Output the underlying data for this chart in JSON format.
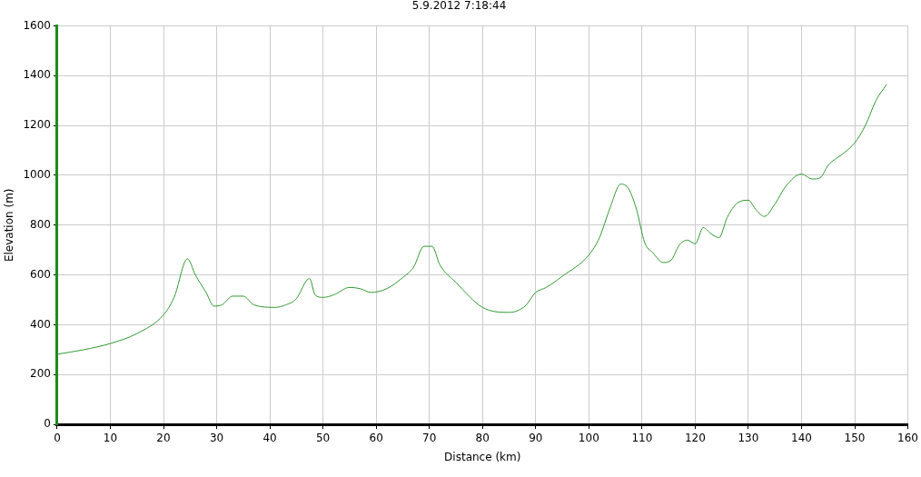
{
  "chart_data": {
    "type": "line",
    "title": "5.9.2012 7:18:44",
    "xlabel": "Distance (km)",
    "ylabel": "Elevation (m)",
    "x": [
      0,
      5,
      10,
      15,
      20,
      22,
      24.5,
      26,
      28,
      29.5,
      31,
      33,
      35,
      37,
      41,
      43,
      45,
      47,
      47.5,
      48.5,
      50,
      52,
      55,
      57,
      59,
      62,
      65,
      67,
      69,
      70.5,
      72,
      75,
      80,
      85,
      88,
      90,
      92,
      95,
      100,
      102,
      104,
      106,
      107.5,
      109,
      110.5,
      112,
      114,
      115.5,
      117,
      118.5,
      120,
      121.5,
      123,
      124.5,
      126,
      128,
      130,
      131.5,
      133,
      135,
      137,
      140,
      142,
      143.5,
      145,
      148,
      150,
      152,
      154,
      156
    ],
    "series": [
      {
        "color": "#339933",
        "values": [
          282,
          300,
          325,
          365,
          440,
          510,
          665,
          600,
          530,
          475,
          480,
          515,
          515,
          480,
          470,
          480,
          505,
          580,
          585,
          520,
          510,
          520,
          550,
          545,
          530,
          545,
          590,
          630,
          715,
          715,
          640,
          570,
          470,
          450,
          475,
          530,
          550,
          595,
          680,
          750,
          870,
          965,
          945,
          860,
          730,
          690,
          650,
          660,
          720,
          740,
          725,
          790,
          765,
          750,
          830,
          890,
          900,
          860,
          835,
          885,
          955,
          1005,
          985,
          990,
          1040,
          1090,
          1130,
          1200,
          1300,
          1365
        ]
      }
    ],
    "xlim": [
      0,
      160
    ],
    "xticks": [
      0,
      10,
      20,
      30,
      40,
      50,
      60,
      70,
      80,
      90,
      100,
      110,
      120,
      130,
      140,
      150,
      160
    ],
    "ylim": [
      0,
      1600
    ],
    "yticks": [
      0,
      200,
      400,
      600,
      800,
      1000,
      1200,
      1400,
      1600
    ],
    "grid": true,
    "marker": "none",
    "line_style": "solid"
  }
}
